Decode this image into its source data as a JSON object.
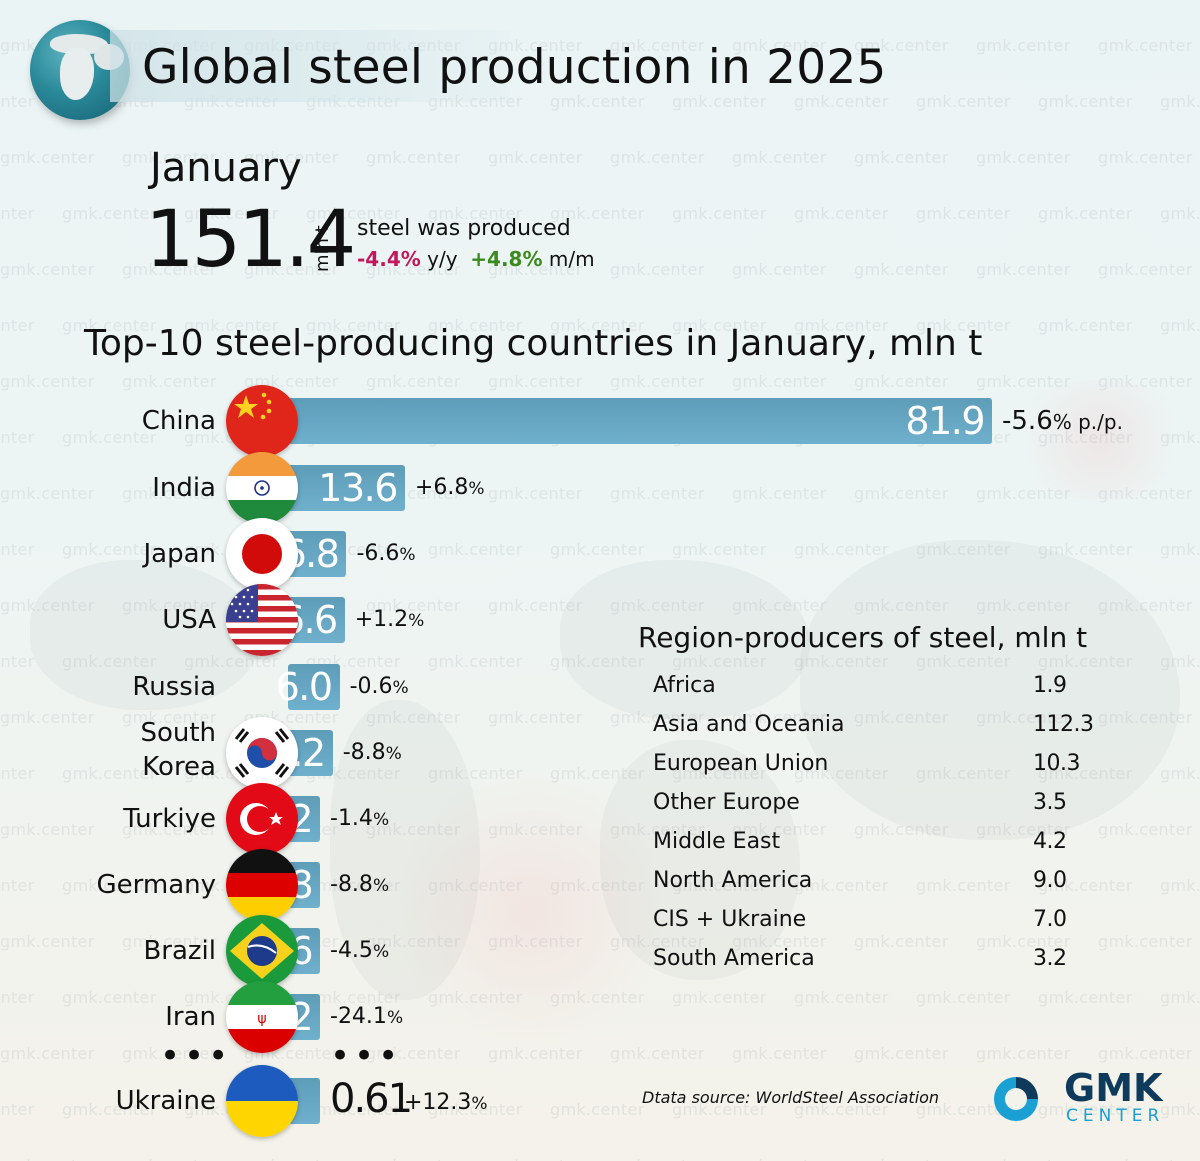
{
  "header": {
    "title": "Global steel production in 2025",
    "month": "January",
    "total_value": "151.4",
    "total_unit": "mln t",
    "produced_label": "steel was produced",
    "yoy_value": "-4.4%",
    "yoy_label": "y/y",
    "mom_value": "+4.8%",
    "mom_label": "m/m"
  },
  "chart_data": {
    "type": "bar",
    "orientation": "horizontal",
    "title": "Top-10 steel-producing countries in January, mln t",
    "xlabel": "",
    "ylabel": "",
    "categories": [
      "China",
      "India",
      "Japan",
      "USA",
      "Russia",
      "South Korea",
      "Turkiye",
      "Germany",
      "Brazil",
      "Iran",
      "Ukraine"
    ],
    "values": [
      81.9,
      13.6,
      6.8,
      6.6,
      6.0,
      5.2,
      3.2,
      2.8,
      2.6,
      2.2,
      0.61
    ],
    "value_labels": [
      "81.9",
      "13.6",
      "6.8",
      "6.6",
      "6.0",
      "5.2",
      "3.2",
      "2.8",
      "2.6",
      "2.2",
      "0.61"
    ],
    "changes": [
      "-5.6",
      "+6.8",
      "-6.6",
      "+1.2",
      "-0.6",
      "-8.8",
      "-1.4",
      "-8.8",
      "-4.5",
      "-24.1",
      "+12.3"
    ],
    "change_unit": "%",
    "change_suffix_first": "p./p.",
    "flags": [
      "china-flag",
      "india-flag",
      "japan-flag",
      "usa-flag",
      "",
      "south-korea-flag",
      "turkiye-flag",
      "germany-flag",
      "brazil-flag",
      "iran-flag",
      "ukraine-flag"
    ],
    "bar_color": "#6aa8c6",
    "ellipsis": "•••"
  },
  "regions": {
    "title": "Region-producers of steel, mln t",
    "rows": [
      {
        "name": "Africa",
        "value": "1.9"
      },
      {
        "name": "Asia and Oceania",
        "value": "112.3"
      },
      {
        "name": "European Union",
        "value": "10.3"
      },
      {
        "name": "Other Europe",
        "value": "3.5"
      },
      {
        "name": "Middle East",
        "value": "4.2"
      },
      {
        "name": "North America",
        "value": "9.0"
      },
      {
        "name": "CIS + Ukraine",
        "value": "7.0"
      },
      {
        "name": "South America",
        "value": "3.2"
      }
    ]
  },
  "footer": {
    "source": "Dtata source: WorldSteel Association",
    "logo_main": "GMK",
    "logo_sub": "CENTER"
  },
  "watermark": "gmk.center",
  "colors": {
    "negative": "#c2185b",
    "positive": "#3b8a1e",
    "logo_dark": "#0e3a5c",
    "logo_light": "#1aa0d2"
  }
}
